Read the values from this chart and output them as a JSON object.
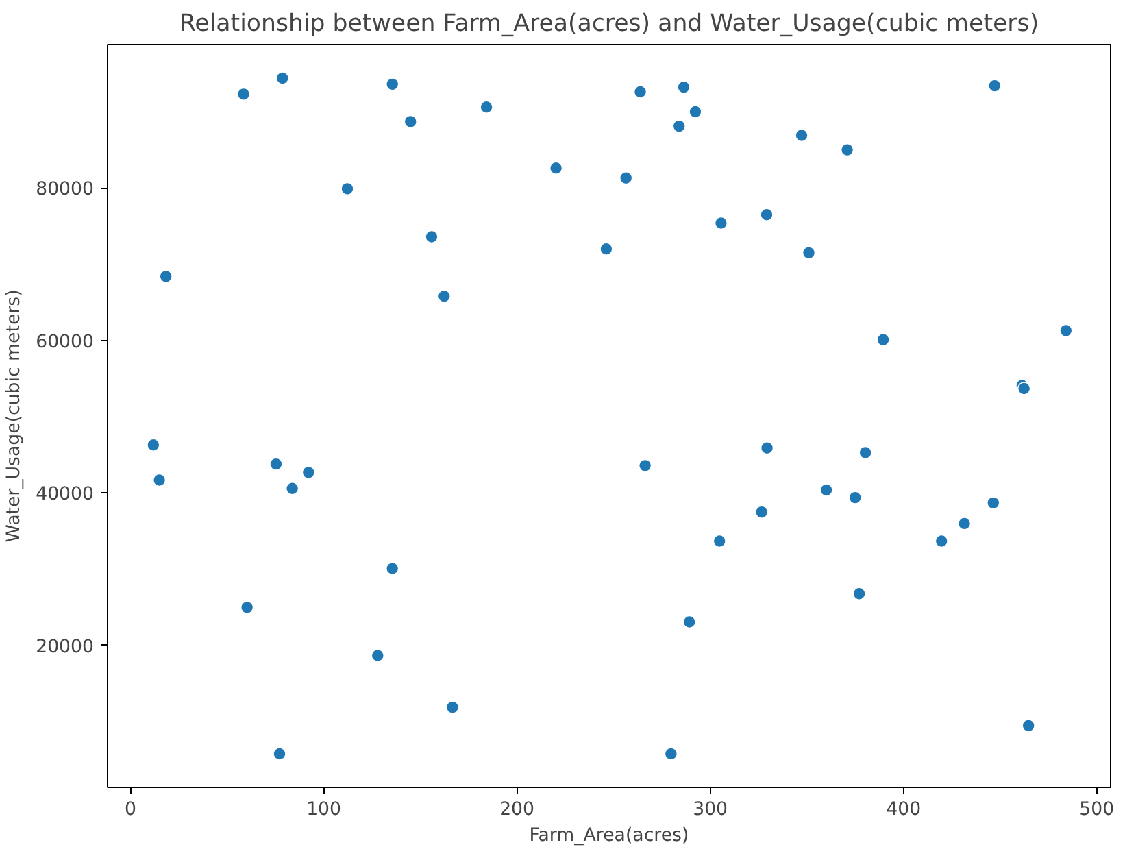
{
  "chart_data": {
    "type": "scatter",
    "title": "Relationship between Farm_Area(acres) and Water_Usage(cubic meters)",
    "xlabel": "Farm_Area(acres)",
    "ylabel": "Water_Usage(cubic meters)",
    "x": [
      58.5,
      78.6,
      135.5,
      144.9,
      184.2,
      112.2,
      220.2,
      155.8,
      246.2,
      162.3,
      18.3,
      263.8,
      286.3,
      283.9,
      292.3,
      256.4,
      347.3,
      370.9,
      329.2,
      305.6,
      351,
      389.5,
      484.1,
      447.2,
      461.4,
      462.4,
      11.8,
      14.9,
      75.3,
      83.7,
      92.1,
      135.5,
      60.3,
      127.9,
      166.6,
      77.1,
      266.3,
      329.4,
      380.3,
      360.1,
      375,
      446.5,
      431.5,
      326.6,
      304.8,
      419.7,
      377.1,
      289.2,
      279.7,
      464.7
    ],
    "values": [
      92300,
      94400,
      93600,
      88700,
      90600,
      79900,
      82600,
      73600,
      72000,
      65800,
      68400,
      92600,
      93200,
      88100,
      90000,
      81300,
      86900,
      85000,
      76500,
      75400,
      71500,
      60100,
      61300,
      93400,
      54100,
      53700,
      46300,
      41700,
      43800,
      40600,
      42700,
      30100,
      25000,
      18700,
      11900,
      5800,
      43600,
      45900,
      45300,
      40400,
      39400,
      38700,
      36000,
      37500,
      33700,
      33700,
      26800,
      23100,
      5800,
      9500
    ],
    "color": "#1f77b4",
    "marker": "circle",
    "grid": false,
    "xlim": [
      -11.9,
      507.2
    ],
    "ylim": [
      1400,
      98800
    ],
    "xticks": [
      0,
      100,
      200,
      300,
      400,
      500
    ],
    "yticks": [
      20000,
      40000,
      60000,
      80000
    ]
  }
}
